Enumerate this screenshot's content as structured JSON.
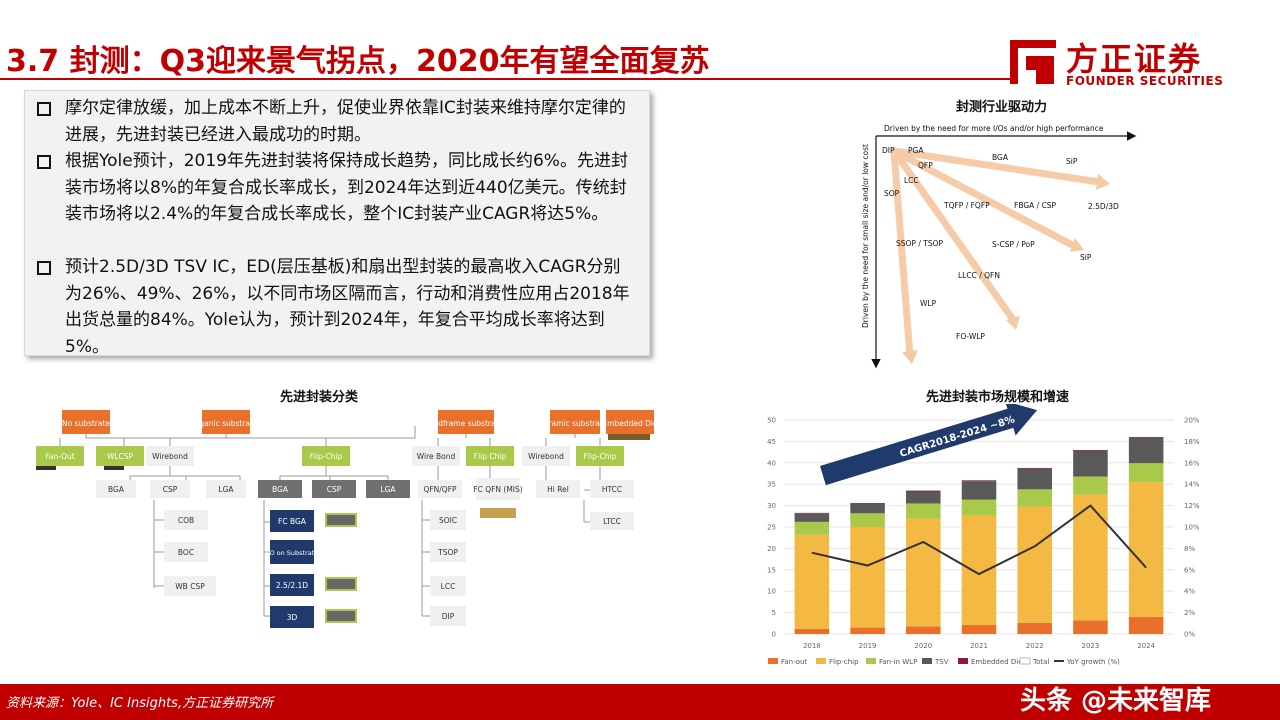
{
  "header": {
    "title": "3.7 封测：Q3迎来景气拐点，2020年有望全面复苏",
    "logo_cn": "方正证券",
    "logo_en": "FOUNDER SECURITIES"
  },
  "bullets": [
    "摩尔定律放缓，加上成本不断上升，促使业界依靠IC封装来维持摩尔定律的进展，先进封装已经进入最成功的时期。",
    "根据Yole预计，2019年先进封装将保持成长趋势，同比成长约6%。先进封装市场将以8%的年复合成长率成长，到2024年达到近440亿美元。传统封装市场将以2.4%的年复合成长率成长，整个IC封装产业CAGR将达5%。",
    "预计2.5D/3D TSV IC，ED(层压基板)和扇出型封装的最高收入CAGR分别为26%、49%、26%，以不同市场区隔而言，行动和消费性应用占2018年出货总量的84%。Yole认为，预计到2024年，年复合平均成长率将达到5%。"
  ],
  "driver_chart": {
    "title": "封测行业驱动力",
    "x_axis_label": "Driven by the need for more I/Os and/or high performance",
    "y_axis_label": "Driven by the need for small size and/or low cost",
    "labels": [
      "DIP",
      "PGA",
      "QFP",
      "BGA",
      "SiP",
      "LCC",
      "SOP",
      "TQFP / FQFP",
      "FBGA / CSP",
      "2.5D/3D",
      "SSOP / TSOP",
      "S-CSP / PoP",
      "SiP",
      "LLCC / QFN",
      "WLP",
      "FO-WLP"
    ]
  },
  "classification": {
    "title": "先进封装分类",
    "top": [
      "No substrate",
      "Organic substrates",
      "Leadframe substrates",
      "Ceramic substrates",
      "Embedded Die"
    ],
    "level2": [
      "Fan-Out",
      "WLCSP",
      "Wirebond",
      "Flip-Chip",
      "Wire Bond",
      "Flip Chip",
      "Wirebond",
      "Flip-Chip"
    ],
    "level3": [
      "BGA",
      "CSP",
      "LGA",
      "BGA",
      "CSP",
      "LGA",
      "QFN/QFP",
      "FC QFN (MIS)",
      "Hi Rel",
      "HTCC",
      "LTCC"
    ],
    "wirebond_children": [
      "COB",
      "BOC",
      "WB CSP"
    ],
    "flipchip_children": [
      "FC BGA",
      "FO on Substrate",
      "2.5/2.1D",
      "3D"
    ],
    "leadframe_children": [
      "SOIC",
      "TSOP",
      "LCC",
      "DIP"
    ]
  },
  "market_chart": {
    "title": "先进封装市场规模和增速",
    "cagr_label": "CAGR2018-2024 ~8%",
    "legend": [
      "Fan-out",
      "Flip-chip",
      "Fan-in WLP",
      "TSV",
      "Embedded Die",
      "Total",
      "YoY growth (%)"
    ]
  },
  "chart_data": {
    "type": "bar",
    "stacked": true,
    "categories": [
      "2018",
      "2019",
      "2020",
      "2021",
      "2022",
      "2023",
      "2024"
    ],
    "series": [
      {
        "name": "Fan-out",
        "values": [
          1.2,
          1.5,
          1.8,
          2.1,
          2.6,
          3.2,
          4.0
        ]
      },
      {
        "name": "Flip-chip",
        "values": [
          22.0,
          23.5,
          25.2,
          25.6,
          27.2,
          29.4,
          31.5
        ]
      },
      {
        "name": "Fan-in WLP",
        "values": [
          3.0,
          3.2,
          3.5,
          3.7,
          4.0,
          4.2,
          4.4
        ]
      },
      {
        "name": "TSV",
        "values": [
          2.0,
          2.3,
          2.8,
          4.3,
          4.8,
          6.0,
          5.9
        ]
      },
      {
        "name": "Embedded Die",
        "values": [
          0.1,
          0.1,
          0.2,
          0.2,
          0.2,
          0.2,
          0.2
        ]
      }
    ],
    "line": {
      "name": "YoY growth (%)",
      "values": [
        7.6,
        6.4,
        8.6,
        5.6,
        8.2,
        12.0,
        6.2
      ]
    },
    "y_left": {
      "min": 0,
      "max": 50,
      "ticks": [
        "0",
        "5",
        "10",
        "15",
        "20",
        "25",
        "30",
        "35",
        "40",
        "45",
        "50"
      ]
    },
    "y_right": {
      "min": 0,
      "max": 20,
      "ticks": [
        "0%",
        "2%",
        "4%",
        "6%",
        "8%",
        "10%",
        "12%",
        "14%",
        "16%",
        "18%",
        "20%"
      ]
    },
    "colors": {
      "Fan-out": "#e8702a",
      "Flip-chip": "#f4b942",
      "Fan-in WLP": "#a8c94a",
      "TSV": "#595959",
      "Embedded Die": "#8b1a3c",
      "line": "#333333"
    }
  },
  "footer": {
    "source": "资料来源：Yole、IC Insights,方正证券研究所",
    "watermark": "头条 @未来智库"
  }
}
